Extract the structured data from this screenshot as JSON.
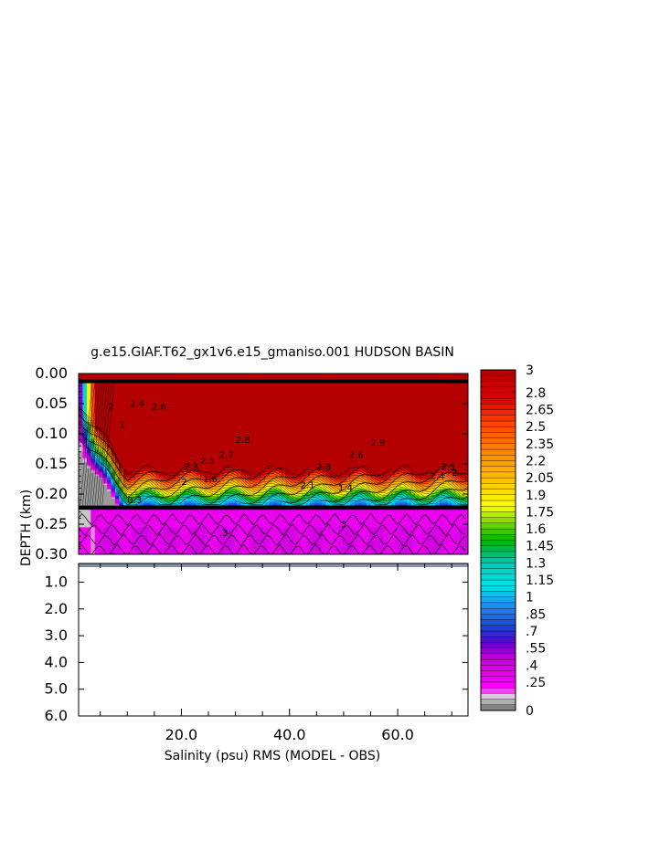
{
  "chart_data": {
    "type": "heatmap",
    "title": "g.e15.GIAF.T62_gx1v6.e15_gmaniso.001 HUDSON BASIN",
    "xlabel": "Salinity (psu) RMS (MODEL - OBS)",
    "ylabel": "DEPTH (km)",
    "x_ticks": [
      "20.0",
      "40.0",
      "60.0"
    ],
    "x_tick_values": [
      20,
      40,
      60
    ],
    "xlim": [
      1,
      73
    ],
    "y_ticks_upper": [
      "0.00",
      "0.05",
      "0.10",
      "0.15",
      "0.20",
      "0.25",
      "0.30"
    ],
    "y_tick_values_upper": [
      0.0,
      0.05,
      0.1,
      0.15,
      0.2,
      0.25,
      0.3
    ],
    "y_ticks_lower": [
      "1.0",
      "2.0",
      "3.0",
      "4.0",
      "5.0",
      "6.0"
    ],
    "y_tick_values_lower": [
      1.0,
      2.0,
      3.0,
      4.0,
      5.0,
      6.0
    ],
    "ylim_upper": [
      0.0,
      0.3
    ],
    "ylim_lower": [
      0.3,
      6.0
    ],
    "colorbar_labels": [
      "3",
      "2.8",
      "2.65",
      "2.5",
      "2.35",
      "2.2",
      "2.05",
      "1.9",
      "1.75",
      "1.6",
      "1.45",
      "1.3",
      "1.15",
      "1",
      ".85",
      ".7",
      ".55",
      ".4",
      ".25",
      "0"
    ],
    "colorbar_label_values": [
      3.0,
      2.8,
      2.65,
      2.5,
      2.35,
      2.2,
      2.05,
      1.9,
      1.75,
      1.6,
      1.45,
      1.3,
      1.15,
      1.0,
      0.85,
      0.7,
      0.55,
      0.4,
      0.25,
      0.0
    ],
    "colorbar_range": [
      0,
      3
    ],
    "colorbar_stops": [
      {
        "value": 0.0,
        "color": "#6e6e6e"
      },
      {
        "value": 0.12,
        "color": "#d8d8d8"
      },
      {
        "value": 0.2,
        "color": "#ff00ff"
      },
      {
        "value": 0.45,
        "color": "#cc00dd"
      },
      {
        "value": 0.6,
        "color": "#5a00cc"
      },
      {
        "value": 0.72,
        "color": "#1e3cd2"
      },
      {
        "value": 0.92,
        "color": "#1e8cf0"
      },
      {
        "value": 1.1,
        "color": "#00e6e6"
      },
      {
        "value": 1.3,
        "color": "#00c8b4"
      },
      {
        "value": 1.5,
        "color": "#00b400"
      },
      {
        "value": 1.68,
        "color": "#8ce000"
      },
      {
        "value": 1.8,
        "color": "#ffff00"
      },
      {
        "value": 2.05,
        "color": "#ffbe00"
      },
      {
        "value": 2.3,
        "color": "#ff8200"
      },
      {
        "value": 2.55,
        "color": "#ff3c00"
      },
      {
        "value": 2.75,
        "color": "#dc0000"
      },
      {
        "value": 3.0,
        "color": "#b40000"
      }
    ],
    "grid": false
  }
}
